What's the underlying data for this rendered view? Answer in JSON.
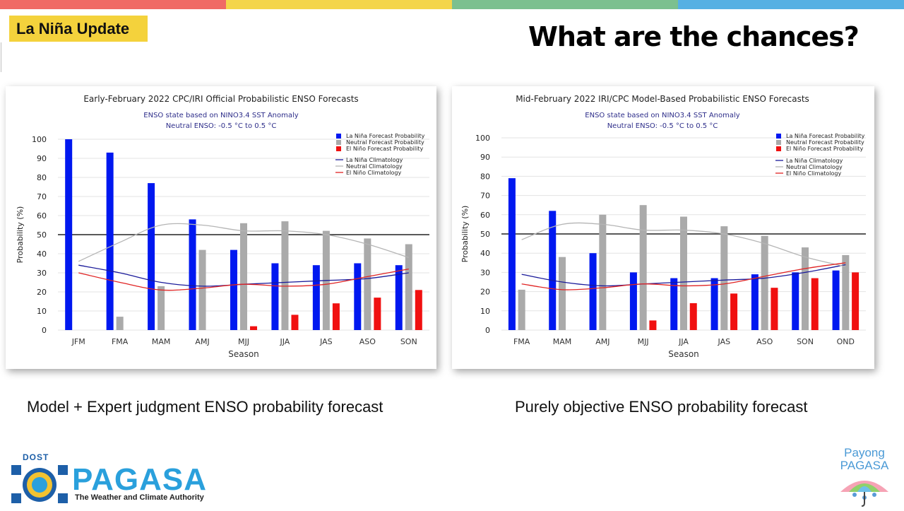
{
  "colors": {
    "top_bar": [
      "#f06a65",
      "#f4d54a",
      "#7cc08f",
      "#56b0e3"
    ],
    "badge_bg": "#f4d23c",
    "la_nina": "#0018f0",
    "neutral": "#aaaaaa",
    "el_nino": "#f01010",
    "la_nina_clim": "#1a1a9a",
    "neutral_clim": "#b5b5b5",
    "el_nino_clim": "#e02424"
  },
  "header": {
    "badge": "La Niña Update",
    "title": "What are the chances?"
  },
  "captions": {
    "left": "Model + Expert judgment ENSO probability forecast",
    "right": "Purely objective ENSO probability forecast"
  },
  "footer": {
    "dost": "DOST",
    "pagasa": "PAGASA",
    "tagline": "The Weather and Climate Authority",
    "payong_1": "Payong",
    "payong_2": "PAGASA"
  },
  "chart_data": [
    {
      "type": "bar",
      "title": "Early-February 2022 CPC/IRI Official Probabilistic ENSO Forecasts",
      "subtitle1": "ENSO state based on NINO3.4 SST Anomaly",
      "subtitle2": "Neutral ENSO: -0.5 °C to 0.5 °C",
      "xlabel": "Season",
      "ylabel": "Probability (%)",
      "ylim": [
        0,
        100
      ],
      "yticks": [
        0,
        10,
        20,
        30,
        40,
        50,
        60,
        70,
        80,
        90,
        100
      ],
      "grid": true,
      "reference_line": 50,
      "legend_position": "top-right",
      "categories": [
        "JFM",
        "FMA",
        "MAM",
        "AMJ",
        "MJJ",
        "JJA",
        "JAS",
        "ASO",
        "SON"
      ],
      "series": [
        {
          "name": "La Niña Forecast Probability",
          "kind": "bar",
          "values": [
            100,
            93,
            77,
            58,
            42,
            35,
            34,
            35,
            34
          ]
        },
        {
          "name": "Neutral Forecast Probability",
          "kind": "bar",
          "values": [
            0,
            7,
            23,
            42,
            56,
            57,
            52,
            48,
            45
          ]
        },
        {
          "name": "El Niño Forecast Probability",
          "kind": "bar",
          "values": [
            0,
            0,
            0,
            0,
            2,
            8,
            14,
            17,
            21
          ]
        },
        {
          "name": "La Niña Climatology",
          "kind": "line",
          "values": [
            34,
            30,
            25,
            23,
            24,
            25,
            26,
            27,
            30
          ]
        },
        {
          "name": "Neutral Climatology",
          "kind": "line",
          "values": [
            36,
            46,
            55,
            55,
            52,
            52,
            50,
            45,
            38
          ]
        },
        {
          "name": "El Niño Climatology",
          "kind": "line",
          "values": [
            30,
            25,
            21,
            22,
            24,
            23,
            24,
            28,
            32
          ]
        }
      ]
    },
    {
      "type": "bar",
      "title": "Mid-February 2022 IRI/CPC Model-Based Probabilistic ENSO Forecasts",
      "subtitle1": "ENSO state based on NINO3.4 SST Anomaly",
      "subtitle2": "Neutral ENSO: -0.5 °C to 0.5 °C",
      "xlabel": "Season",
      "ylabel": "Probability (%)",
      "ylim": [
        0,
        100
      ],
      "yticks": [
        0,
        10,
        20,
        30,
        40,
        50,
        60,
        70,
        80,
        90,
        100
      ],
      "grid": true,
      "reference_line": 50,
      "legend_position": "top-right",
      "categories": [
        "FMA",
        "MAM",
        "AMJ",
        "MJJ",
        "JJA",
        "JAS",
        "ASO",
        "SON",
        "OND"
      ],
      "series": [
        {
          "name": "La Niña Forecast Probability",
          "kind": "bar",
          "values": [
            79,
            62,
            40,
            30,
            27,
            27,
            29,
            30,
            31
          ]
        },
        {
          "name": "Neutral Forecast Probability",
          "kind": "bar",
          "values": [
            21,
            38,
            60,
            65,
            59,
            54,
            49,
            43,
            39
          ]
        },
        {
          "name": "El Niño Forecast Probability",
          "kind": "bar",
          "values": [
            0,
            0,
            0,
            5,
            14,
            19,
            22,
            27,
            30
          ]
        },
        {
          "name": "La Niña Climatology",
          "kind": "line",
          "values": [
            29,
            25,
            23,
            24,
            25,
            26,
            27,
            30,
            34
          ]
        },
        {
          "name": "Neutral Climatology",
          "kind": "line",
          "values": [
            47,
            55,
            55,
            52,
            52,
            50,
            45,
            38,
            33
          ]
        },
        {
          "name": "El Niño Climatology",
          "kind": "line",
          "values": [
            24,
            21,
            22,
            24,
            23,
            24,
            28,
            32,
            35
          ]
        }
      ]
    }
  ]
}
